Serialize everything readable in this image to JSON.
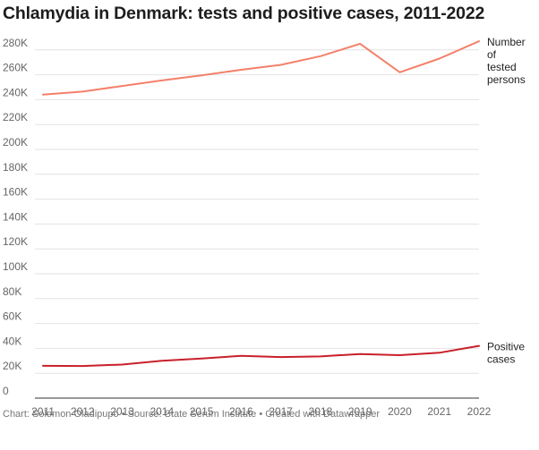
{
  "chart_data": {
    "type": "line",
    "title": "Chlamydia in Denmark: tests and positive cases, 2011-2022",
    "x": [
      2011,
      2012,
      2013,
      2014,
      2015,
      2016,
      2017,
      2018,
      2019,
      2020,
      2021,
      2022
    ],
    "series": [
      {
        "name_lines": [
          "Number",
          "of",
          "tested",
          "persons"
        ],
        "color": "#f4806a",
        "values": [
          244000,
          246500,
          251000,
          255500,
          259500,
          264000,
          268000,
          275000,
          285000,
          262000,
          273000,
          287000
        ]
      },
      {
        "name_lines": [
          "Positive",
          "cases"
        ],
        "color": "#c8202a",
        "values": [
          26000,
          25800,
          27000,
          30000,
          31800,
          34000,
          33000,
          33500,
          35500,
          34500,
          36500,
          42000
        ]
      }
    ],
    "ylim": [
      0,
      290000
    ],
    "yticks": [
      0,
      20000,
      40000,
      60000,
      80000,
      100000,
      120000,
      140000,
      160000,
      180000,
      200000,
      220000,
      240000,
      260000,
      280000
    ],
    "ytick_labels": [
      "0",
      "20K",
      "40K",
      "60K",
      "80K",
      "100K",
      "120K",
      "140K",
      "160K",
      "180K",
      "200K",
      "220K",
      "240K",
      "260K",
      "280K"
    ],
    "xtick_labels": [
      "2011",
      "2012",
      "2013",
      "2014",
      "2015",
      "2016",
      "2017",
      "2018",
      "2019",
      "2020",
      "2021",
      "2022"
    ],
    "grid": true
  },
  "footer": "Chart: Solomon Oladipupo • Source: State Serum Institute • Created with Datawrapper"
}
